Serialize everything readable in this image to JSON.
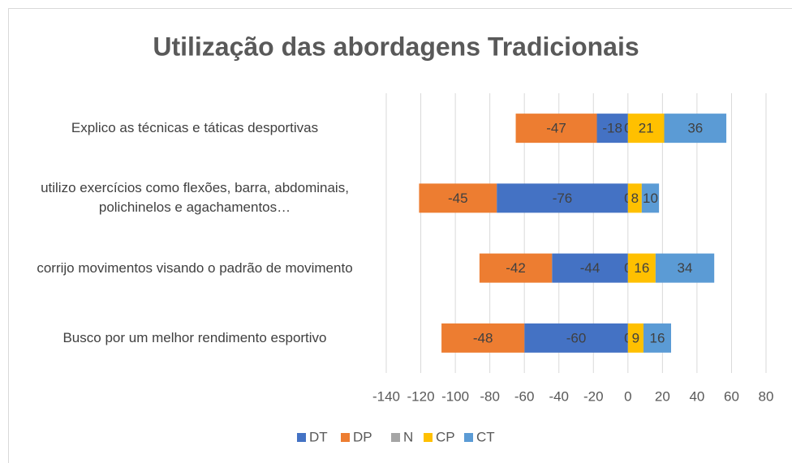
{
  "chart_data": {
    "type": "bar",
    "orientation": "horizontal",
    "stacked": true,
    "title": "Utilização das abordagens Tradicionais",
    "categories": [
      "Explico as técnicas e táticas desportivas",
      "utilizo exercícios como flexões, barra, abdominais, polichinelos e agachamentos…",
      "corrijo movimentos visando o padrão de movimento",
      "Busco por um melhor rendimento esportivo"
    ],
    "series": [
      {
        "name": "DT",
        "color": "#4472c4",
        "values": [
          -18,
          -76,
          -44,
          -60
        ]
      },
      {
        "name": "DP",
        "color": "#ed7d31",
        "values": [
          -47,
          -45,
          -42,
          -48
        ]
      },
      {
        "name": "N",
        "color": "#a5a5a5",
        "values": [
          0,
          0,
          0,
          0
        ]
      },
      {
        "name": "CP",
        "color": "#ffc000",
        "values": [
          21,
          8,
          16,
          9
        ]
      },
      {
        "name": "CT",
        "color": "#5b9bd5",
        "values": [
          36,
          10,
          34,
          16
        ]
      }
    ],
    "xlim": [
      -140,
      80
    ],
    "xticks": [
      -140,
      -120,
      -100,
      -80,
      -60,
      -40,
      -20,
      0,
      20,
      40,
      60,
      80
    ],
    "grid": true,
    "legend": "bottom"
  }
}
